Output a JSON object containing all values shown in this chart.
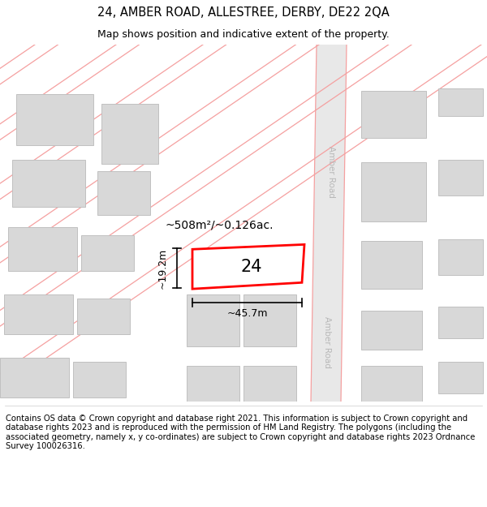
{
  "title_line1": "24, AMBER ROAD, ALLESTREE, DERBY, DE22 2QA",
  "title_line2": "Map shows position and indicative extent of the property.",
  "footer_text": "Contains OS data © Crown copyright and database right 2021. This information is subject to Crown copyright and database rights 2023 and is reproduced with the permission of HM Land Registry. The polygons (including the associated geometry, namely x, y co-ordinates) are subject to Crown copyright and database rights 2023 Ordnance Survey 100026316.",
  "bg_color": "#ffffff",
  "map_bg_color": "#ffffff",
  "road_line_color": "#f5a0a0",
  "road_line_lw": 0.9,
  "amber_road_fill": "#e8e8e8",
  "building_fill_color": "#d8d8d8",
  "building_edge_color": "#c0c0c0",
  "highlight_fill_color": "#ffffff",
  "highlight_edge_color": "#ff0000",
  "road_label_color": "#b8b8b8",
  "dim_color": "#000000",
  "area_text": "~508m²/~0.126ac.",
  "width_text": "~45.7m",
  "height_text": "~19.2m",
  "number_text": "24",
  "amber_road_label": "Amber Road",
  "title_fontsize": 10.5,
  "subtitle_fontsize": 9,
  "footer_fontsize": 7.2,
  "map_annotation_fontsize": 10,
  "dim_fontsize": 9,
  "number_fontsize": 15
}
